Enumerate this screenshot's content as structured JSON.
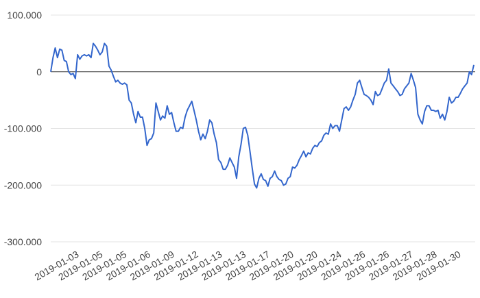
{
  "chart_data": {
    "type": "line",
    "title": "",
    "xlabel": "",
    "ylabel": "",
    "ylim": [
      -300000,
      100000
    ],
    "y_ticks": [
      100000,
      0,
      -100000,
      -200000,
      -300000
    ],
    "y_tick_labels": [
      "100.000",
      "0",
      "-100.000",
      "-200.000",
      "-300.000"
    ],
    "x_tick_labels": [
      "2019-01-03",
      "2019-01-05",
      "2019-01-05",
      "2019-01-06",
      "2019-01-09",
      "2019-01-12",
      "2019-01-13",
      "2019-01-13",
      "2019-01-17",
      "2019-01-20",
      "2019-01-20",
      "2019-01-24",
      "2019-01-26",
      "2019-01-26",
      "2019-01-27",
      "2019-01-28",
      "2019-01-30"
    ],
    "grid": true,
    "legend": "none",
    "zero_line": true,
    "colors": {
      "line": "#3366cc",
      "grid": "#e3e3e3",
      "zero_line": "#333333",
      "tick_text": "#444444"
    },
    "series": [
      {
        "values": [
          0,
          25000,
          42000,
          25000,
          40000,
          38000,
          20000,
          18000,
          0,
          -5000,
          -3000,
          -12000,
          30000,
          22000,
          28000,
          30000,
          28000,
          30000,
          25000,
          50000,
          45000,
          38000,
          30000,
          35000,
          50000,
          45000,
          10000,
          3000,
          -8000,
          -18000,
          -15000,
          -20000,
          -22000,
          -20000,
          -23000,
          -50000,
          -55000,
          -75000,
          -90000,
          -70000,
          -80000,
          -80000,
          -100000,
          -130000,
          -120000,
          -118000,
          -108000,
          -55000,
          -70000,
          -85000,
          -78000,
          -82000,
          -60000,
          -75000,
          -72000,
          -90000,
          -105000,
          -105000,
          -98000,
          -100000,
          -80000,
          -68000,
          -60000,
          -52000,
          -68000,
          -85000,
          -105000,
          -120000,
          -110000,
          -118000,
          -105000,
          -85000,
          -90000,
          -110000,
          -125000,
          -155000,
          -160000,
          -172000,
          -172000,
          -165000,
          -152000,
          -160000,
          -168000,
          -188000,
          -150000,
          -128000,
          -100000,
          -98000,
          -112000,
          -140000,
          -170000,
          -198000,
          -205000,
          -188000,
          -180000,
          -190000,
          -192000,
          -202000,
          -188000,
          -185000,
          -175000,
          -185000,
          -190000,
          -192000,
          -200000,
          -198000,
          -188000,
          -185000,
          -168000,
          -170000,
          -165000,
          -155000,
          -148000,
          -140000,
          -150000,
          -143000,
          -145000,
          -135000,
          -130000,
          -132000,
          -125000,
          -122000,
          -112000,
          -108000,
          -110000,
          -92000,
          -100000,
          -95000,
          -95000,
          -105000,
          -85000,
          -65000,
          -62000,
          -68000,
          -62000,
          -50000,
          -40000,
          -20000,
          -15000,
          -28000,
          -40000,
          -42000,
          -45000,
          -50000,
          -58000,
          -35000,
          -42000,
          -40000,
          -30000,
          -20000,
          -15000,
          5000,
          -20000,
          -25000,
          -30000,
          -35000,
          -42000,
          -40000,
          -30000,
          -25000,
          -20000,
          -3000,
          -15000,
          -28000,
          -75000,
          -85000,
          -92000,
          -70000,
          -60000,
          -60000,
          -68000,
          -68000,
          -70000,
          -68000,
          -82000,
          -75000,
          -85000,
          -70000,
          -45000,
          -55000,
          -52000,
          -45000,
          -45000,
          -38000,
          -30000,
          -25000,
          -20000,
          0,
          -5000,
          12000
        ]
      }
    ]
  }
}
